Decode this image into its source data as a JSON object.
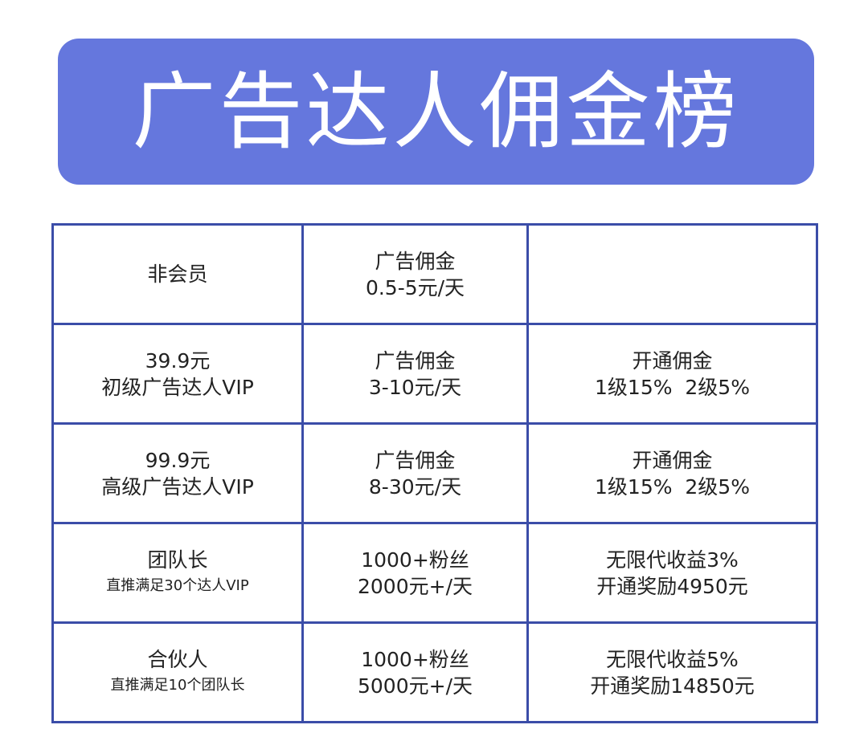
{
  "banner": {
    "title": "广告达人佣金榜"
  },
  "rows": [
    {
      "col1": [
        "非会员"
      ],
      "col2": [
        "广告佣金",
        "0.5-5元/天"
      ],
      "col3": []
    },
    {
      "col1": [
        "39.9元",
        "初级广告达人VIP"
      ],
      "col2": [
        "广告佣金",
        "3-10元/天"
      ],
      "col3": [
        "开通佣金",
        "1级15%  2级5%"
      ]
    },
    {
      "col1": [
        "99.9元",
        "高级广告达人VIP"
      ],
      "col2": [
        "广告佣金",
        "8-30元/天"
      ],
      "col3": [
        "开通佣金",
        "1级15%  2级5%"
      ]
    },
    {
      "col1": [
        "团队长",
        "直推满足30个达人VIP"
      ],
      "col2": [
        "1000+粉丝",
        "2000元+/天"
      ],
      "col3": [
        "无限代收益3%",
        "开通奖励4950元"
      ]
    },
    {
      "col1": [
        "合伙人",
        "直推满足10个团队长"
      ],
      "col2": [
        "1000+粉丝",
        "5000元+/天"
      ],
      "col3": [
        "无限代收益5%",
        "开通奖励14850元"
      ]
    }
  ],
  "colors": {
    "banner_bg": "#6577dd",
    "border": "#3b4da8",
    "text": "#222222"
  }
}
